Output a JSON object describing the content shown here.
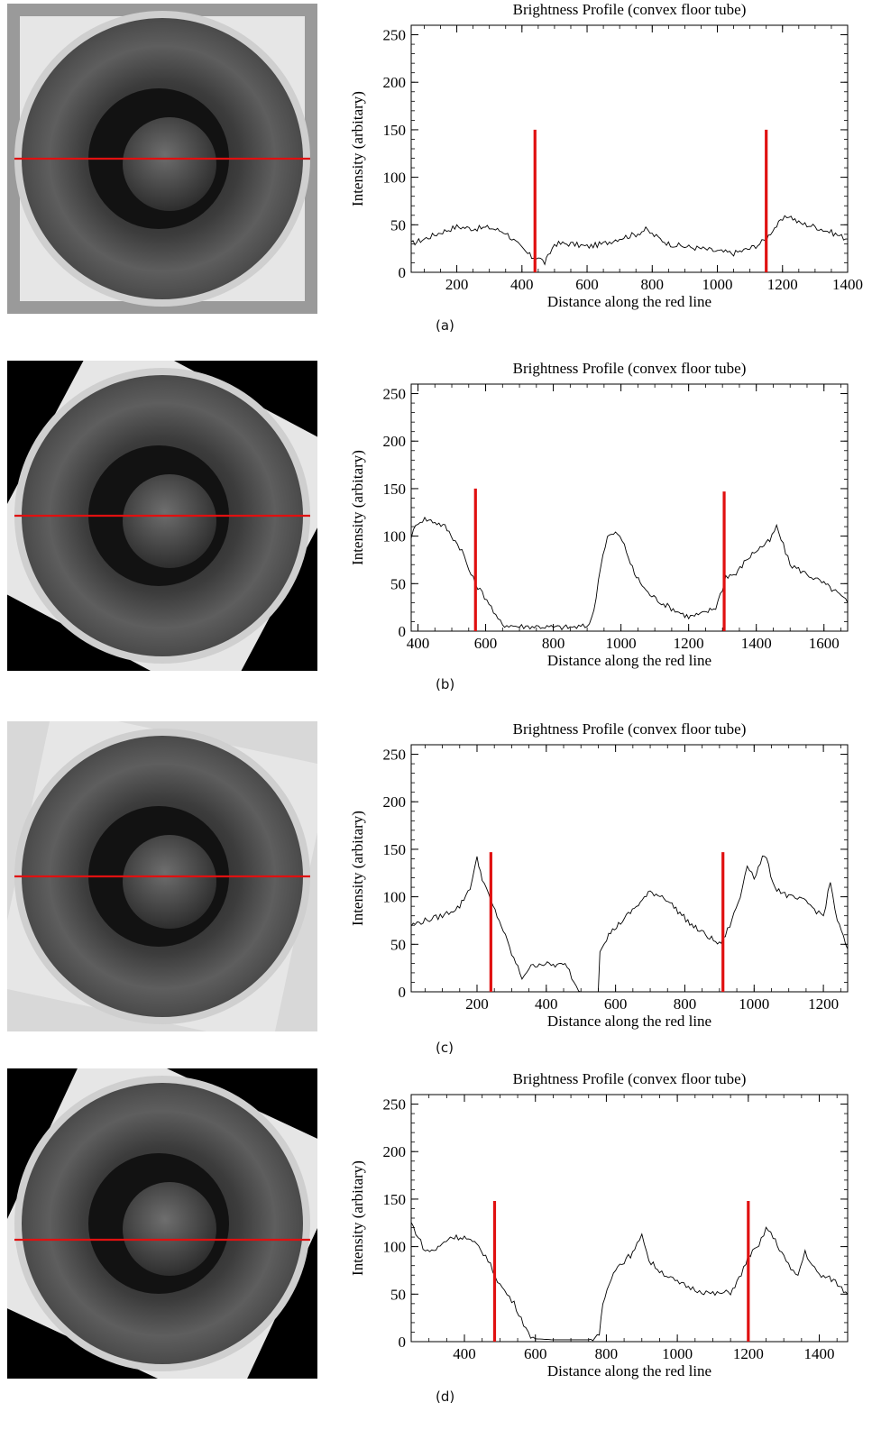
{
  "panels": [
    {
      "label": "(a)"
    },
    {
      "label": "(b)"
    },
    {
      "label": "(c)"
    },
    {
      "label": "(d)"
    }
  ],
  "chart_data": [
    {
      "type": "line",
      "title": "Brightness Profile (convex floor tube)",
      "xlabel": "Distance along the red line",
      "ylabel": "Intensity (arbitary)",
      "xlim": [
        60,
        1400
      ],
      "ylim": [
        0,
        260
      ],
      "xticks": [
        200,
        400,
        600,
        800,
        1000,
        1200,
        1400
      ],
      "yticks": [
        0,
        50,
        100,
        150,
        200,
        250
      ],
      "markers": [
        {
          "x": 440,
          "ymax": 150
        },
        {
          "x": 1150,
          "ymax": 150
        }
      ],
      "series": [
        {
          "color": "#000000",
          "x": [
            60,
            100,
            150,
            200,
            250,
            300,
            350,
            400,
            430,
            450,
            470,
            480,
            500,
            550,
            600,
            650,
            700,
            750,
            780,
            800,
            850,
            900,
            950,
            1000,
            1050,
            1100,
            1130,
            1150,
            1170,
            1200,
            1220,
            1250,
            1300,
            1350,
            1400
          ],
          "y": [
            30,
            35,
            42,
            48,
            46,
            47,
            42,
            25,
            16,
            16,
            10,
            16,
            30,
            30,
            27,
            30,
            36,
            40,
            45,
            40,
            30,
            27,
            25,
            22,
            20,
            25,
            30,
            35,
            45,
            55,
            60,
            52,
            48,
            42,
            35
          ]
        }
      ]
    },
    {
      "type": "line",
      "title": "Brightness Profile (convex floor tube)",
      "xlabel": "Distance along the red line",
      "ylabel": "Intensity (arbitary)",
      "xlim": [
        380,
        1670
      ],
      "ylim": [
        0,
        260
      ],
      "xticks": [
        400,
        600,
        800,
        1000,
        1200,
        1400,
        1600
      ],
      "yticks": [
        0,
        50,
        100,
        150,
        200,
        250
      ],
      "markers": [
        {
          "x": 570,
          "ymax": 150
        },
        {
          "x": 1305,
          "ymax": 147
        }
      ],
      "series": [
        {
          "color": "#000000",
          "x": [
            380,
            400,
            420,
            450,
            480,
            510,
            530,
            550,
            570,
            590,
            610,
            630,
            650,
            700,
            750,
            800,
            850,
            900,
            920,
            940,
            960,
            990,
            1010,
            1040,
            1080,
            1120,
            1160,
            1200,
            1240,
            1280,
            1300,
            1310,
            1340,
            1370,
            1400,
            1440,
            1460,
            1480,
            1500,
            1550,
            1600,
            1640,
            1670
          ],
          "y": [
            100,
            115,
            118,
            115,
            110,
            95,
            85,
            65,
            50,
            40,
            30,
            15,
            7,
            5,
            5,
            4,
            4,
            5,
            20,
            70,
            100,
            103,
            90,
            60,
            40,
            30,
            22,
            15,
            18,
            25,
            45,
            58,
            60,
            75,
            85,
            95,
            110,
            90,
            70,
            60,
            50,
            40,
            30
          ]
        }
      ]
    },
    {
      "type": "line",
      "title": "Brightness Profile (convex floor tube)",
      "xlabel": "Distance along the red line",
      "ylabel": "Intensity (arbitary)",
      "xlim": [
        10,
        1270
      ],
      "ylim": [
        0,
        260
      ],
      "xticks": [
        200,
        400,
        600,
        800,
        1000,
        1200
      ],
      "yticks": [
        0,
        50,
        100,
        150,
        200,
        250
      ],
      "markers": [
        {
          "x": 240,
          "ymax": 147
        },
        {
          "x": 910,
          "ymax": 147
        }
      ],
      "series": [
        {
          "color": "#000000",
          "x": [
            10,
            50,
            100,
            150,
            180,
            200,
            215,
            240,
            270,
            300,
            330,
            350,
            380,
            420,
            460,
            480,
            500,
            550,
            555,
            580,
            620,
            660,
            700,
            740,
            780,
            820,
            860,
            900,
            910,
            930,
            960,
            980,
            1000,
            1030,
            1060,
            1100,
            1150,
            1180,
            1200,
            1220,
            1240,
            1270
          ],
          "y": [
            70,
            75,
            80,
            90,
            110,
            140,
            120,
            95,
            70,
            40,
            15,
            25,
            30,
            28,
            28,
            10,
            0,
            0,
            45,
            60,
            75,
            90,
            105,
            100,
            85,
            70,
            60,
            50,
            55,
            70,
            100,
            135,
            120,
            145,
            110,
            100,
            95,
            85,
            80,
            115,
            75,
            45
          ]
        }
      ]
    },
    {
      "type": "line",
      "title": "Brightness Profile (convex floor tube)",
      "xlabel": "Distance along the red line",
      "ylabel": "Intensity (arbitary)",
      "xlim": [
        250,
        1480
      ],
      "ylim": [
        0,
        260
      ],
      "xticks": [
        400,
        600,
        800,
        1000,
        1200,
        1400
      ],
      "yticks": [
        0,
        50,
        100,
        150,
        200,
        250
      ],
      "markers": [
        {
          "x": 485,
          "ymax": 148
        },
        {
          "x": 1200,
          "ymax": 148
        }
      ],
      "series": [
        {
          "color": "#000000",
          "x": [
            250,
            270,
            290,
            320,
            360,
            400,
            440,
            460,
            480,
            500,
            520,
            540,
            560,
            580,
            600,
            650,
            700,
            750,
            780,
            790,
            820,
            850,
            880,
            900,
            920,
            950,
            1000,
            1050,
            1100,
            1150,
            1180,
            1200,
            1230,
            1250,
            1270,
            1300,
            1320,
            1340,
            1360,
            1380,
            1400,
            1440,
            1480
          ],
          "y": [
            125,
            110,
            95,
            97,
            110,
            110,
            100,
            90,
            75,
            60,
            50,
            40,
            25,
            8,
            3,
            2,
            2,
            2,
            5,
            40,
            75,
            85,
            95,
            115,
            85,
            75,
            62,
            55,
            50,
            52,
            70,
            90,
            100,
            120,
            110,
            90,
            75,
            70,
            95,
            80,
            70,
            65,
            50
          ]
        }
      ]
    }
  ]
}
